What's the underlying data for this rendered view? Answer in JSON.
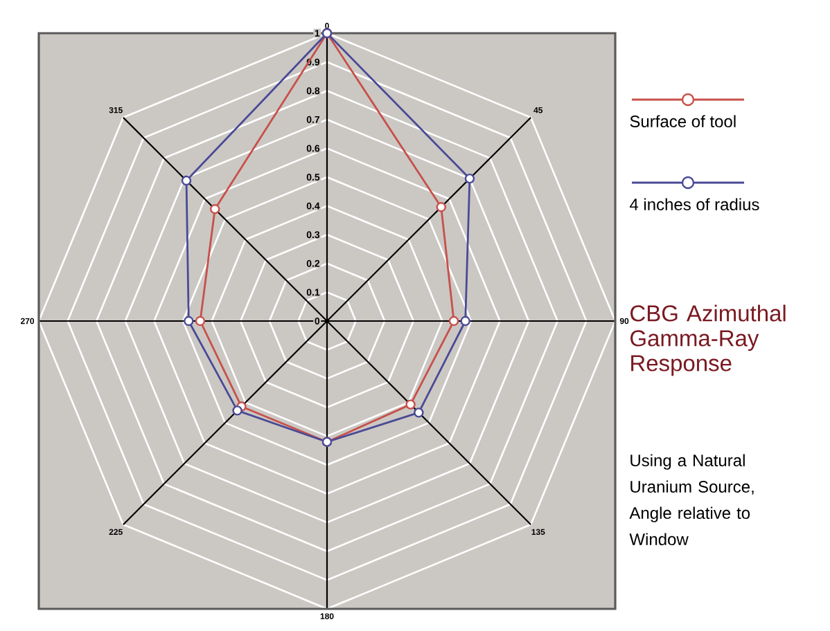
{
  "chart_data": {
    "type": "radar",
    "title": "CBG Azimuthal Gamma-Ray Response",
    "subtitle": "Using a Natural Uranium Source, Angle relative to Window",
    "categories": [
      "0",
      "45",
      "90",
      "135",
      "180",
      "225",
      "270",
      "315"
    ],
    "series": [
      {
        "name": "Surface of tool",
        "color": "#c8504a",
        "values": [
          1.0,
          0.56,
          0.44,
          0.41,
          0.42,
          0.42,
          0.44,
          0.55
        ]
      },
      {
        "name": "4 inches of radius",
        "color": "#4a4a96",
        "values": [
          1.0,
          0.7,
          0.48,
          0.45,
          0.42,
          0.44,
          0.48,
          0.69
        ]
      }
    ],
    "ylim": [
      0,
      1
    ],
    "yticks": [
      0,
      0.1,
      0.2,
      0.3,
      0.4,
      0.5,
      0.6,
      0.7,
      0.8,
      0.9,
      1
    ],
    "grid": true,
    "legend": "right",
    "marker": "circle",
    "line_style": "solid"
  }
}
